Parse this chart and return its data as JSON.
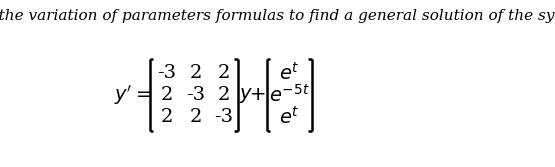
{
  "title": "Use the variation of parameters formulas to find a general solution of the system",
  "title_fontsize": 11,
  "title_style": "italic",
  "background_color": "#ffffff",
  "matrix": [
    [
      -3,
      2,
      2
    ],
    [
      2,
      -3,
      2
    ],
    [
      2,
      2,
      -3
    ]
  ],
  "vector": [
    "e^{t}",
    "e^{-5t}",
    "e^{t}"
  ],
  "text_color": "#000000"
}
